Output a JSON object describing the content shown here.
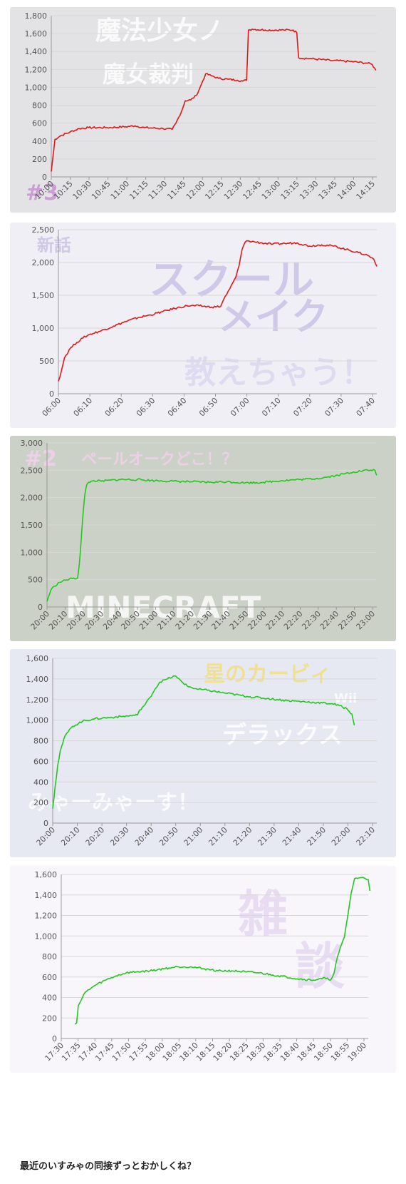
{
  "caption": "最近のいすみゃの同接ずっとおかしくね？",
  "colors": {
    "red": "#e01818",
    "green": "#22c81e",
    "grid": "#d8d8d8",
    "axis": "#999999"
  },
  "panels": [
    {
      "background": "#e3e3e6",
      "watermark": [
        "魔法少女ノ",
        "魔女裁判",
        "#3"
      ],
      "watermark_colors": [
        "#ffffff",
        "#ffffff",
        "#c58ad0"
      ],
      "chart_data": {
        "type": "line",
        "color": "#e01818",
        "x_labels": [
          "10:00",
          "10:15",
          "10:30",
          "10:45",
          "11:00",
          "11:15",
          "11:30",
          "11:45",
          "12:00",
          "12:15",
          "12:30",
          "12:45",
          "13:00",
          "13:15",
          "13:30",
          "13:45",
          "14:00",
          "14:15"
        ],
        "yticks": [
          "0",
          "200",
          "400",
          "600",
          "800",
          "1,000",
          "1,200",
          "1,400",
          "1,600",
          "1,800"
        ],
        "ylim": [
          0,
          1800
        ],
        "xlim": [
          0,
          17.5
        ],
        "points": [
          [
            0,
            60
          ],
          [
            0.2,
            420
          ],
          [
            0.5,
            460
          ],
          [
            1,
            500
          ],
          [
            1.5,
            540
          ],
          [
            2,
            550
          ],
          [
            3,
            550
          ],
          [
            4,
            560
          ],
          [
            4.5,
            570
          ],
          [
            5,
            550
          ],
          [
            6,
            540
          ],
          [
            6.5,
            530
          ],
          [
            6.7,
            600
          ],
          [
            7,
            730
          ],
          [
            7.2,
            850
          ],
          [
            7.5,
            860
          ],
          [
            7.8,
            910
          ],
          [
            8,
            1000
          ],
          [
            8.3,
            1150
          ],
          [
            8.6,
            1130
          ],
          [
            9,
            1100
          ],
          [
            9.5,
            1090
          ],
          [
            10,
            1080
          ],
          [
            10.3,
            1070
          ],
          [
            10.5,
            1080
          ],
          [
            10.6,
            1640
          ],
          [
            10.8,
            1650
          ],
          [
            11.5,
            1640
          ],
          [
            12.5,
            1640
          ],
          [
            13,
            1640
          ],
          [
            13.2,
            1610
          ],
          [
            13.3,
            1330
          ],
          [
            14,
            1320
          ],
          [
            15,
            1300
          ],
          [
            16,
            1290
          ],
          [
            17,
            1270
          ],
          [
            17.25,
            1255
          ],
          [
            17.45,
            1190
          ]
        ]
      }
    },
    {
      "background": "#f1eff6",
      "watermark": [
        "新話",
        "スクール",
        "メイク",
        "教えちゃう！"
      ],
      "watermark_colors": [
        "#c7bfe4",
        "#c7bfe4",
        "#c7bfe4",
        "#d9d4ee"
      ],
      "chart_data": {
        "type": "line",
        "color": "#e01818",
        "x_labels": [
          "06:00",
          "06:10",
          "06:20",
          "06:30",
          "06:40",
          "06:50",
          "07:00",
          "07:10",
          "07:20",
          "07:30",
          "07:40"
        ],
        "yticks": [
          "0",
          "500",
          "1,000",
          "1,500",
          "2,000",
          "2,500"
        ],
        "ylim": [
          0,
          2500
        ],
        "xlim": [
          0,
          104
        ],
        "points": [
          [
            0,
            190
          ],
          [
            1,
            350
          ],
          [
            2,
            550
          ],
          [
            4,
            700
          ],
          [
            6,
            780
          ],
          [
            8,
            850
          ],
          [
            10,
            900
          ],
          [
            14,
            960
          ],
          [
            18,
            1030
          ],
          [
            22,
            1100
          ],
          [
            26,
            1160
          ],
          [
            30,
            1200
          ],
          [
            34,
            1250
          ],
          [
            38,
            1300
          ],
          [
            42,
            1340
          ],
          [
            46,
            1340
          ],
          [
            50,
            1320
          ],
          [
            53,
            1330
          ],
          [
            54,
            1440
          ],
          [
            56,
            1600
          ],
          [
            58,
            1780
          ],
          [
            59,
            1950
          ],
          [
            60,
            2200
          ],
          [
            61,
            2310
          ],
          [
            62,
            2330
          ],
          [
            66,
            2300
          ],
          [
            70,
            2280
          ],
          [
            74,
            2290
          ],
          [
            78,
            2300
          ],
          [
            82,
            2250
          ],
          [
            86,
            2270
          ],
          [
            90,
            2250
          ],
          [
            94,
            2200
          ],
          [
            98,
            2150
          ],
          [
            101,
            2110
          ],
          [
            103,
            2050
          ],
          [
            104,
            1940
          ]
        ]
      }
    },
    {
      "background": "#cbd1c7",
      "watermark": [
        "#2",
        "ペールオークどこ！？",
        "MINECRAFT"
      ],
      "watermark_colors": [
        "#f3d0ee",
        "#f3d0ee",
        "#ffffff"
      ],
      "chart_data": {
        "type": "line",
        "color": "#22c81e",
        "x_labels": [
          "20:00",
          "20:10",
          "20:20",
          "20:30",
          "20:40",
          "20:50",
          "21:00",
          "21:10",
          "21:20",
          "21:30",
          "21:40",
          "21:50",
          "22:00",
          "22:10",
          "22:20",
          "22:30",
          "22:40",
          "22:50",
          "23:00"
        ],
        "yticks": [
          "0",
          "500",
          "1,000",
          "1,500",
          "2,000",
          "2,500",
          "3,000"
        ],
        "ylim": [
          0,
          3000
        ],
        "xlim": [
          0,
          183
        ],
        "points": [
          [
            0,
            100
          ],
          [
            1,
            200
          ],
          [
            2,
            300
          ],
          [
            4,
            380
          ],
          [
            7,
            450
          ],
          [
            10,
            490
          ],
          [
            14,
            520
          ],
          [
            17,
            530
          ],
          [
            18,
            800
          ],
          [
            19,
            1250
          ],
          [
            20,
            1700
          ],
          [
            21,
            2050
          ],
          [
            22,
            2230
          ],
          [
            23,
            2280
          ],
          [
            26,
            2310
          ],
          [
            30,
            2300
          ],
          [
            40,
            2330
          ],
          [
            50,
            2330
          ],
          [
            60,
            2310
          ],
          [
            70,
            2300
          ],
          [
            80,
            2290
          ],
          [
            90,
            2280
          ],
          [
            100,
            2290
          ],
          [
            110,
            2270
          ],
          [
            120,
            2280
          ],
          [
            130,
            2310
          ],
          [
            140,
            2330
          ],
          [
            150,
            2350
          ],
          [
            160,
            2400
          ],
          [
            170,
            2470
          ],
          [
            178,
            2500
          ],
          [
            182,
            2500
          ],
          [
            183,
            2410
          ]
        ]
      }
    },
    {
      "background": "#e6e8f2",
      "watermark": [
        "星のカービィ",
        "Wii",
        "デラックス",
        "みゃーみゃーす！"
      ],
      "watermark_colors": [
        "#f1de7a",
        "#ffffff",
        "#ffffff",
        "#ffffff"
      ],
      "chart_data": {
        "type": "line",
        "color": "#22c81e",
        "x_labels": [
          "20:00",
          "20:10",
          "20:20",
          "20:30",
          "20:40",
          "20:50",
          "21:00",
          "21:10",
          "21:20",
          "21:30",
          "21:40",
          "21:50",
          "22:00",
          "22:10"
        ],
        "yticks": [
          "0",
          "200",
          "400",
          "600",
          "800",
          "1,000",
          "1,200",
          "1,400",
          "1,600"
        ],
        "ylim": [
          0,
          1600
        ],
        "xlim": [
          0,
          130
        ],
        "points": [
          [
            0,
            140
          ],
          [
            1,
            360
          ],
          [
            2,
            560
          ],
          [
            3,
            700
          ],
          [
            5,
            850
          ],
          [
            8,
            940
          ],
          [
            12,
            990
          ],
          [
            16,
            1010
          ],
          [
            20,
            1020
          ],
          [
            25,
            1030
          ],
          [
            30,
            1040
          ],
          [
            34,
            1050
          ],
          [
            35,
            1100
          ],
          [
            37,
            1150
          ],
          [
            39,
            1220
          ],
          [
            41,
            1300
          ],
          [
            43,
            1370
          ],
          [
            46,
            1400
          ],
          [
            49,
            1430
          ],
          [
            50,
            1410
          ],
          [
            54,
            1330
          ],
          [
            58,
            1300
          ],
          [
            62,
            1290
          ],
          [
            70,
            1260
          ],
          [
            78,
            1230
          ],
          [
            86,
            1210
          ],
          [
            94,
            1190
          ],
          [
            100,
            1180
          ],
          [
            106,
            1170
          ],
          [
            112,
            1160
          ],
          [
            115,
            1140
          ],
          [
            118,
            1110
          ],
          [
            120,
            1060
          ],
          [
            121,
            950
          ]
        ]
      }
    },
    {
      "background": "#f8f6fb",
      "watermark": [
        "雑",
        "談"
      ],
      "watermark_colors": [
        "#e4d6f1",
        "#e4d6f1"
      ],
      "chart_data": {
        "type": "line",
        "color": "#22c81e",
        "x_labels": [
          "17:30",
          "17:35",
          "17:40",
          "17:45",
          "17:50",
          "17:55",
          "18:00",
          "18:05",
          "18:10",
          "18:15",
          "18:20",
          "18:25",
          "18:30",
          "18:35",
          "18:40",
          "18:45",
          "18:50",
          "18:55",
          "19:00"
        ],
        "yticks": [
          "0",
          "200",
          "400",
          "600",
          "800",
          "1,000",
          "1,200",
          "1,400",
          "1,600"
        ],
        "ylim": [
          0,
          1600
        ],
        "xlim": [
          0,
          90
        ],
        "points": [
          [
            4,
            140
          ],
          [
            4.5,
            150
          ],
          [
            5,
            320
          ],
          [
            7,
            450
          ],
          [
            10,
            520
          ],
          [
            13,
            570
          ],
          [
            16,
            610
          ],
          [
            19,
            640
          ],
          [
            22,
            650
          ],
          [
            26,
            660
          ],
          [
            30,
            680
          ],
          [
            34,
            700
          ],
          [
            38,
            700
          ],
          [
            42,
            680
          ],
          [
            46,
            660
          ],
          [
            50,
            660
          ],
          [
            54,
            650
          ],
          [
            58,
            640
          ],
          [
            62,
            620
          ],
          [
            66,
            600
          ],
          [
            70,
            580
          ],
          [
            74,
            570
          ],
          [
            78,
            590
          ],
          [
            79,
            570
          ],
          [
            80,
            640
          ],
          [
            81,
            800
          ],
          [
            83,
            990
          ],
          [
            84,
            1200
          ],
          [
            85,
            1420
          ],
          [
            86,
            1560
          ],
          [
            88,
            1570
          ],
          [
            90,
            1550
          ],
          [
            90.5,
            1440
          ]
        ]
      }
    }
  ]
}
